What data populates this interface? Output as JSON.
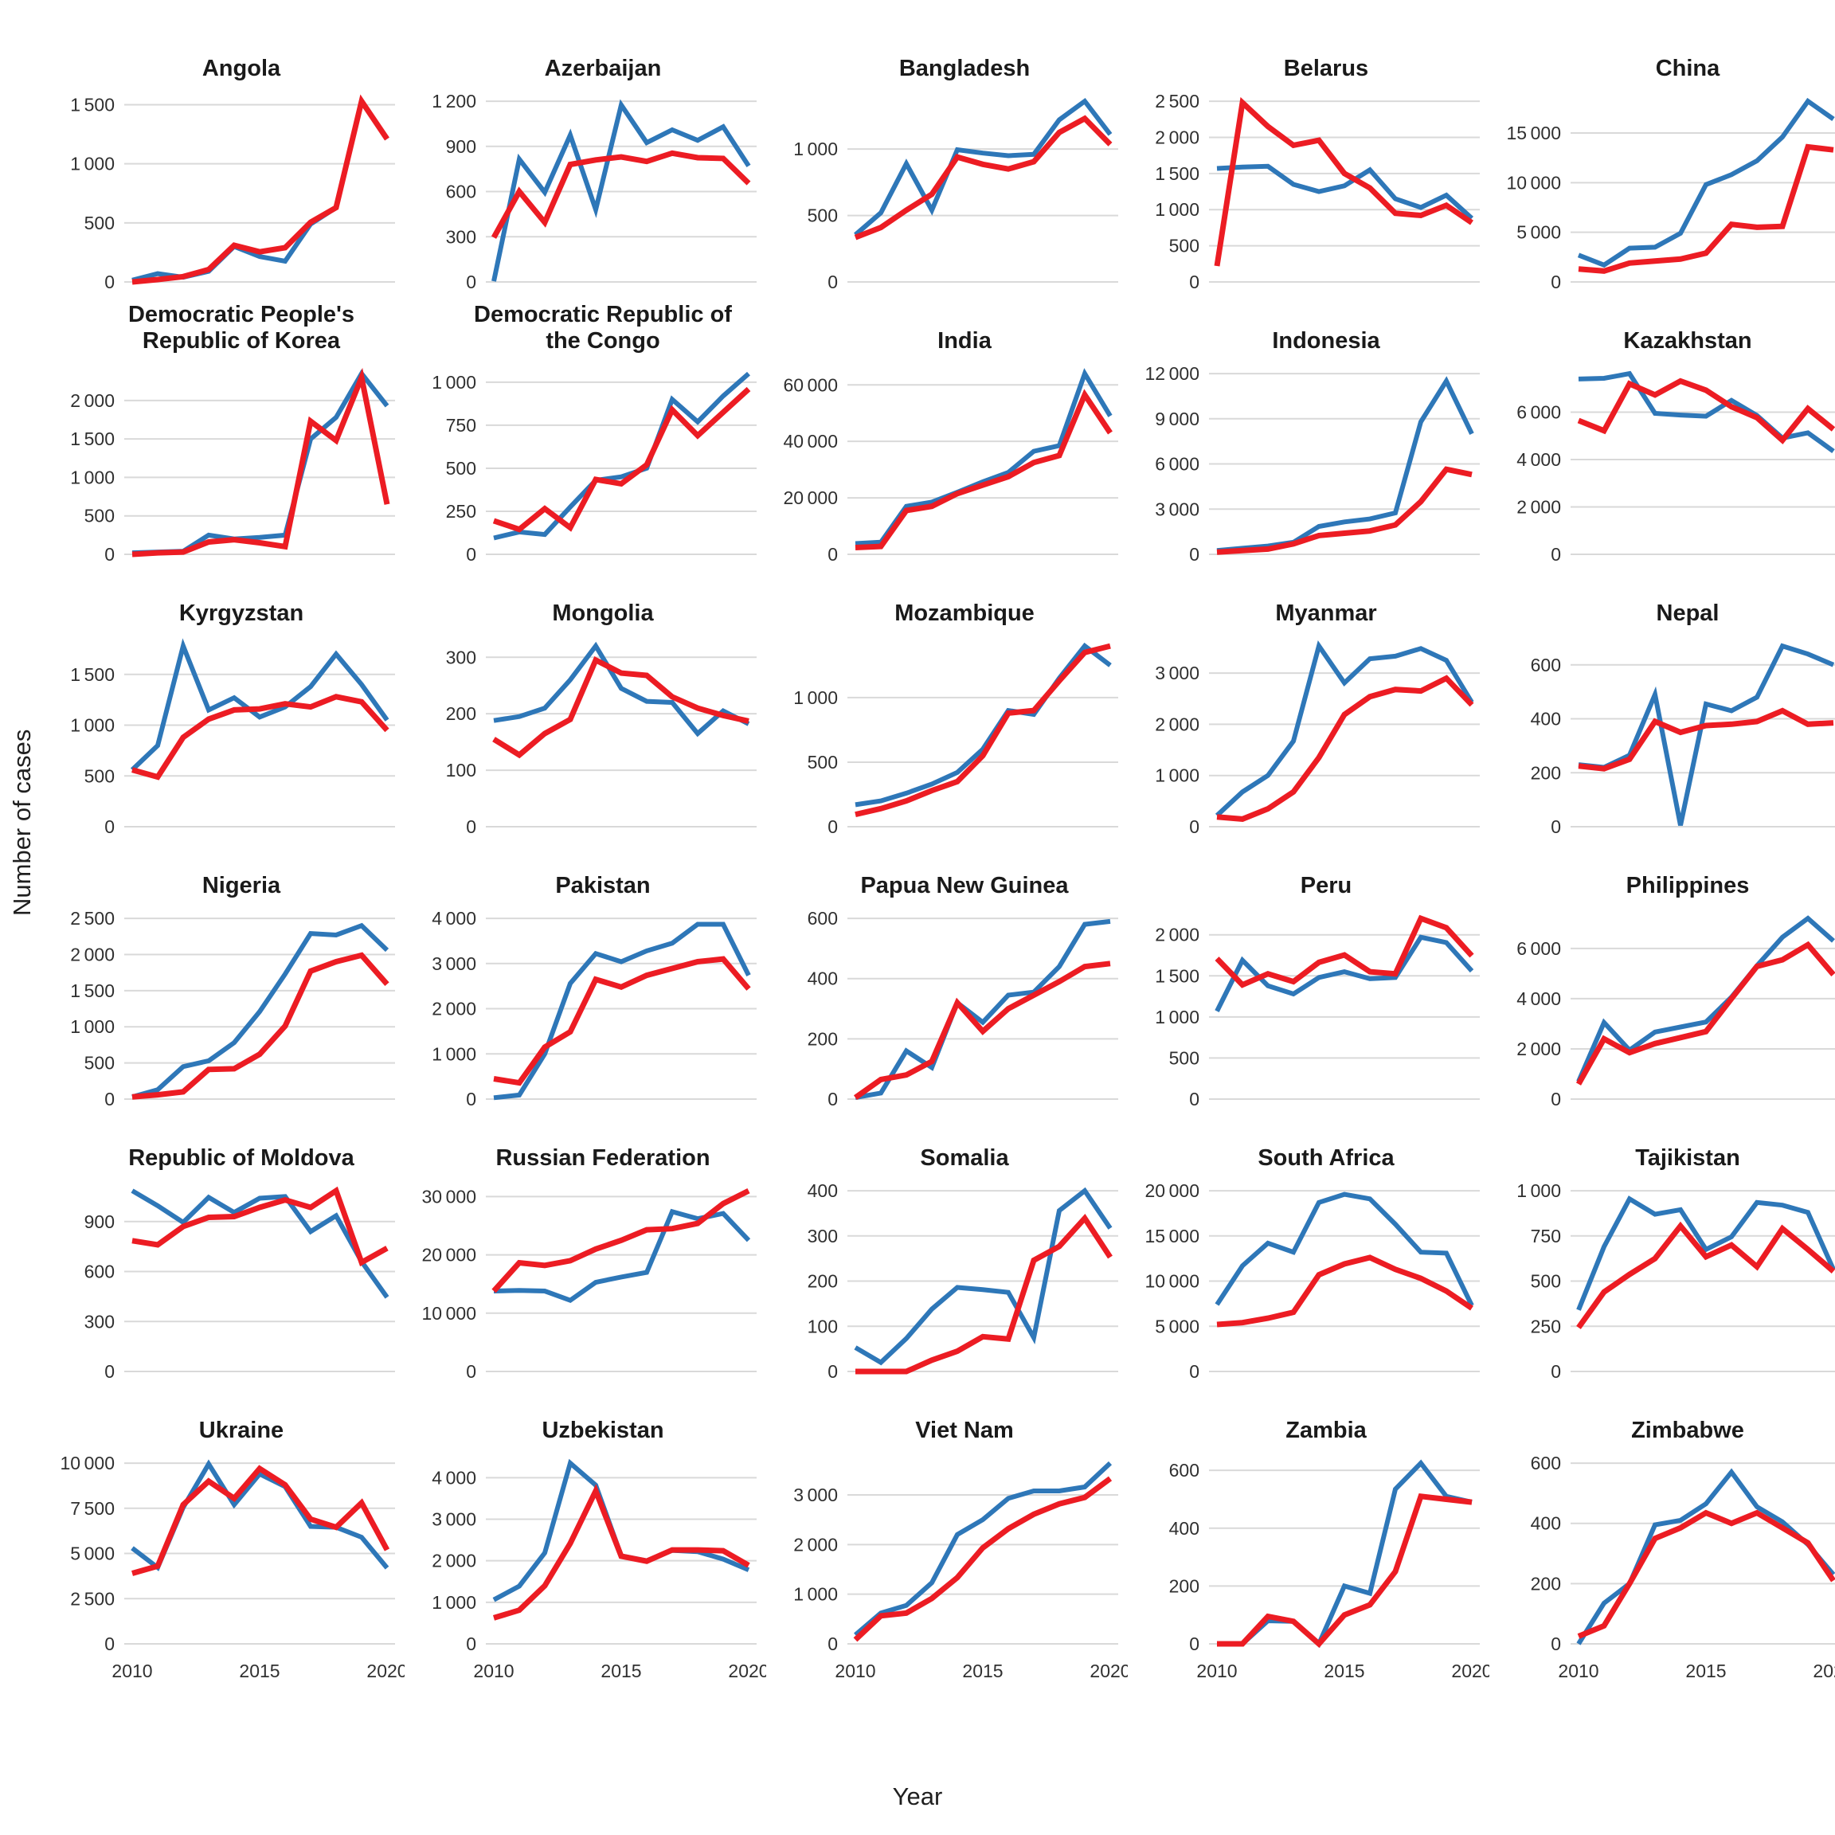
{
  "figure": {
    "x_label": "Year",
    "y_label": "Number of cases",
    "x_tick_labels": [
      "2010",
      "2015",
      "2020"
    ],
    "x_tick_years": [
      2010,
      2015,
      2020
    ],
    "colors": {
      "blue_series": "#2E77B8",
      "red_series": "#EC1C23",
      "gridline": "#D9D9D9",
      "title_text": "#1a1a1a",
      "tick_text": "#303030"
    }
  },
  "chart_data": {
    "type": "line",
    "x": [
      2010,
      2011,
      2012,
      2013,
      2014,
      2015,
      2016,
      2017,
      2018,
      2019,
      2020
    ],
    "xlabel": "Year",
    "ylabel": "Number of cases",
    "legend": "none",
    "panels": [
      {
        "title": "Angola",
        "yticks": [
          0,
          500,
          1000,
          1500
        ],
        "blue": [
          15,
          70,
          40,
          90,
          300,
          215,
          175,
          490,
          630,
          1530,
          1210
        ],
        "red": [
          0,
          20,
          45,
          105,
          310,
          255,
          290,
          505,
          630,
          1530,
          1210
        ]
      },
      {
        "title": "Azerbaijan",
        "yticks": [
          0,
          300,
          600,
          900,
          1200
        ],
        "blue": [
          5,
          815,
          595,
          975,
          480,
          1175,
          925,
          1010,
          940,
          1030,
          770
        ],
        "red": [
          295,
          600,
          395,
          780,
          810,
          830,
          800,
          855,
          825,
          820,
          655
        ]
      },
      {
        "title": "Bangladesh",
        "yticks": [
          0,
          500,
          1000
        ],
        "blue": [
          355,
          520,
          890,
          540,
          995,
          970,
          950,
          960,
          1220,
          1360,
          1110
        ],
        "red": [
          335,
          410,
          540,
          660,
          940,
          885,
          850,
          905,
          1125,
          1230,
          1035
        ]
      },
      {
        "title": "Belarus",
        "yticks": [
          0,
          500,
          1000,
          1500,
          2000,
          2500
        ],
        "blue": [
          1570,
          1590,
          1600,
          1350,
          1250,
          1330,
          1550,
          1150,
          1030,
          1200,
          880
        ],
        "red": [
          220,
          2480,
          2150,
          1890,
          1960,
          1500,
          1300,
          950,
          920,
          1060,
          820
        ]
      },
      {
        "title": "China",
        "yticks": [
          0,
          5000,
          10000,
          15000
        ],
        "blue": [
          2700,
          1700,
          3400,
          3500,
          4900,
          9800,
          10800,
          12200,
          14600,
          18200,
          16400
        ],
        "red": [
          1300,
          1100,
          1900,
          2100,
          2300,
          2900,
          5800,
          5500,
          5600,
          13600,
          13300
        ]
      },
      {
        "title": "Democratic People's Republic of Korea",
        "yticks": [
          0,
          500,
          1000,
          1500,
          2000
        ],
        "blue": [
          20,
          30,
          40,
          250,
          200,
          220,
          250,
          1500,
          1780,
          2350,
          1930
        ],
        "red": [
          0,
          20,
          30,
          160,
          190,
          150,
          100,
          1730,
          1480,
          2300,
          650
        ]
      },
      {
        "title": "Democratic Republic of the Congo",
        "yticks": [
          0,
          250,
          500,
          750,
          1000
        ],
        "blue": [
          95,
          130,
          115,
          275,
          430,
          450,
          500,
          900,
          770,
          920,
          1050
        ],
        "red": [
          195,
          145,
          265,
          155,
          435,
          410,
          520,
          840,
          690,
          825,
          960
        ]
      },
      {
        "title": "India",
        "yticks": [
          0,
          20000,
          40000,
          60000
        ],
        "blue": [
          3800,
          4300,
          17000,
          18500,
          22000,
          25700,
          29000,
          36500,
          38500,
          64000,
          49000
        ],
        "red": [
          2400,
          2800,
          15500,
          17000,
          21500,
          24500,
          27500,
          32500,
          35000,
          56500,
          43000
        ]
      },
      {
        "title": "Indonesia",
        "yticks": [
          0,
          3000,
          6000,
          9000,
          12000
        ],
        "blue": [
          250,
          400,
          550,
          800,
          1850,
          2150,
          2350,
          2750,
          8800,
          11500,
          8000
        ],
        "red": [
          150,
          250,
          350,
          700,
          1250,
          1400,
          1550,
          1950,
          3500,
          5650,
          5300
        ]
      },
      {
        "title": "Kazakhstan",
        "yticks": [
          0,
          2000,
          4000,
          6000
        ],
        "blue": [
          7400,
          7430,
          7630,
          5950,
          5880,
          5830,
          6500,
          5860,
          4910,
          5130,
          4350
        ],
        "red": [
          5650,
          5220,
          7200,
          6730,
          7315,
          6930,
          6230,
          5770,
          4815,
          6150,
          5280
        ]
      },
      {
        "title": "Kyrgyzstan",
        "yticks": [
          0,
          500,
          1000,
          1500
        ],
        "blue": [
          560,
          800,
          1780,
          1150,
          1270,
          1080,
          1180,
          1380,
          1700,
          1400,
          1050
        ],
        "red": [
          560,
          490,
          880,
          1060,
          1150,
          1160,
          1210,
          1180,
          1280,
          1230,
          950
        ]
      },
      {
        "title": "Mongolia",
        "yticks": [
          0,
          100,
          200,
          300
        ],
        "blue": [
          188,
          195,
          210,
          260,
          320,
          245,
          222,
          220,
          165,
          205,
          182
        ],
        "red": [
          155,
          127,
          165,
          190,
          295,
          272,
          268,
          230,
          210,
          197,
          187
        ]
      },
      {
        "title": "Mozambique",
        "yticks": [
          0,
          500,
          1000
        ],
        "blue": [
          170,
          200,
          260,
          330,
          420,
          600,
          900,
          870,
          1150,
          1400,
          1250
        ],
        "red": [
          95,
          140,
          200,
          280,
          350,
          550,
          880,
          900,
          1130,
          1350,
          1400
        ]
      },
      {
        "title": "Myanmar",
        "yticks": [
          0,
          1000,
          2000,
          3000
        ],
        "blue": [
          220,
          680,
          1000,
          1670,
          3530,
          2810,
          3280,
          3330,
          3480,
          3250,
          2430
        ],
        "red": [
          190,
          150,
          350,
          680,
          1350,
          2190,
          2540,
          2680,
          2650,
          2900,
          2380
        ]
      },
      {
        "title": "Nepal",
        "yticks": [
          0,
          200,
          400,
          600
        ],
        "blue": [
          230,
          220,
          265,
          490,
          5,
          455,
          430,
          480,
          670,
          640,
          600
        ],
        "red": [
          225,
          215,
          250,
          390,
          350,
          375,
          380,
          390,
          430,
          380,
          385
        ]
      },
      {
        "title": "Nigeria",
        "yticks": [
          0,
          500,
          1000,
          1500,
          2000,
          2500
        ],
        "blue": [
          30,
          130,
          450,
          530,
          780,
          1210,
          1730,
          2290,
          2270,
          2400,
          2060
        ],
        "red": [
          30,
          60,
          100,
          410,
          420,
          620,
          1010,
          1770,
          1900,
          1990,
          1590
        ]
      },
      {
        "title": "Pakistan",
        "yticks": [
          0,
          1000,
          2000,
          3000,
          4000
        ],
        "blue": [
          30,
          90,
          1000,
          2560,
          3220,
          3040,
          3280,
          3450,
          3870,
          3870,
          2740
        ],
        "red": [
          450,
          360,
          1150,
          1490,
          2650,
          2480,
          2740,
          2890,
          3040,
          3100,
          2440
        ]
      },
      {
        "title": "Papua New Guinea",
        "yticks": [
          0,
          200,
          400,
          600
        ],
        "blue": [
          5,
          20,
          160,
          105,
          320,
          255,
          345,
          355,
          440,
          580,
          590
        ],
        "red": [
          5,
          65,
          80,
          125,
          320,
          225,
          300,
          345,
          390,
          440,
          450
        ]
      },
      {
        "title": "Peru",
        "yticks": [
          0,
          500,
          1000,
          1500,
          2000
        ],
        "blue": [
          1070,
          1690,
          1380,
          1280,
          1480,
          1550,
          1465,
          1480,
          1970,
          1905,
          1560
        ],
        "red": [
          1710,
          1390,
          1525,
          1430,
          1665,
          1755,
          1550,
          1525,
          2200,
          2085,
          1745
        ]
      },
      {
        "title": "Philippines",
        "yticks": [
          0,
          2000,
          4000,
          6000
        ],
        "blue": [
          700,
          3050,
          1950,
          2670,
          2870,
          3070,
          4060,
          5310,
          6450,
          7200,
          6300
        ],
        "red": [
          600,
          2400,
          1850,
          2210,
          2450,
          2690,
          4000,
          5290,
          5550,
          6150,
          4960
        ]
      },
      {
        "title": "Republic of Moldova",
        "yticks": [
          0,
          300,
          600,
          900
        ],
        "blue": [
          1085,
          995,
          895,
          1045,
          955,
          1040,
          1050,
          840,
          935,
          660,
          445
        ],
        "red": [
          785,
          760,
          870,
          925,
          930,
          985,
          1030,
          985,
          1085,
          655,
          740
        ]
      },
      {
        "title": "Russian Federation",
        "yticks": [
          0,
          10000,
          20000,
          30000
        ],
        "blue": [
          13800,
          13900,
          13800,
          12200,
          15300,
          16200,
          17000,
          27400,
          26200,
          27100,
          22500
        ],
        "red": [
          13800,
          18650,
          18200,
          19000,
          21000,
          22500,
          24300,
          24500,
          25400,
          28800,
          31000
        ]
      },
      {
        "title": "Somalia",
        "yticks": [
          0,
          100,
          200,
          300,
          400
        ],
        "blue": [
          53,
          20,
          73,
          138,
          186,
          181,
          175,
          75,
          356,
          400,
          317
        ],
        "red": [
          0,
          0,
          0,
          25,
          45,
          77,
          72,
          246,
          277,
          339,
          253
        ]
      },
      {
        "title": "South Africa",
        "yticks": [
          0,
          5000,
          10000,
          15000,
          20000
        ],
        "blue": [
          7400,
          11700,
          14200,
          13200,
          18700,
          19600,
          19100,
          16300,
          13200,
          13100,
          7300
        ],
        "red": [
          5200,
          5400,
          5900,
          6550,
          10700,
          11900,
          12600,
          11300,
          10300,
          8900,
          7000
        ]
      },
      {
        "title": "Tajikistan",
        "yticks": [
          0,
          250,
          500,
          750,
          1000
        ],
        "blue": [
          340,
          690,
          955,
          870,
          895,
          675,
          745,
          935,
          920,
          880,
          565
        ],
        "red": [
          243,
          440,
          537,
          625,
          805,
          635,
          700,
          580,
          790,
          675,
          554
        ]
      },
      {
        "title": "Ukraine",
        "yticks": [
          0,
          2500,
          5000,
          7500,
          10000
        ],
        "blue": [
          5300,
          4220,
          7550,
          9950,
          7700,
          9400,
          8700,
          6500,
          6450,
          5900,
          4200
        ],
        "red": [
          3900,
          4300,
          7700,
          9000,
          8050,
          9700,
          8800,
          6900,
          6450,
          7800,
          5200
        ]
      },
      {
        "title": "Uzbekistan",
        "yticks": [
          0,
          1000,
          2000,
          3000,
          4000
        ],
        "blue": [
          1060,
          1390,
          2190,
          4350,
          3820,
          2120,
          2000,
          2250,
          2220,
          2040,
          1780
        ],
        "red": [
          625,
          810,
          1400,
          2420,
          3680,
          2110,
          1990,
          2260,
          2260,
          2240,
          1890
        ]
      },
      {
        "title": "Viet Nam",
        "yticks": [
          0,
          1000,
          2000,
          3000
        ],
        "blue": [
          180,
          620,
          775,
          1230,
          2200,
          2500,
          2930,
          3080,
          3080,
          3160,
          3640
        ],
        "red": [
          84,
          565,
          620,
          915,
          1335,
          1935,
          2320,
          2610,
          2820,
          2950,
          3330
        ]
      },
      {
        "title": "Zambia",
        "yticks": [
          0,
          200,
          400,
          600
        ],
        "blue": [
          0,
          0,
          80,
          78,
          0,
          200,
          175,
          535,
          625,
          510,
          490
        ],
        "red": [
          0,
          0,
          95,
          78,
          0,
          100,
          135,
          250,
          510,
          500,
          490
        ]
      },
      {
        "title": "Zimbabwe",
        "yticks": [
          0,
          200,
          400,
          600
        ],
        "blue": [
          0,
          135,
          200,
          395,
          410,
          465,
          570,
          455,
          405,
          330,
          230
        ],
        "red": [
          25,
          60,
          200,
          350,
          385,
          435,
          400,
          435,
          385,
          335,
          210
        ]
      }
    ]
  }
}
